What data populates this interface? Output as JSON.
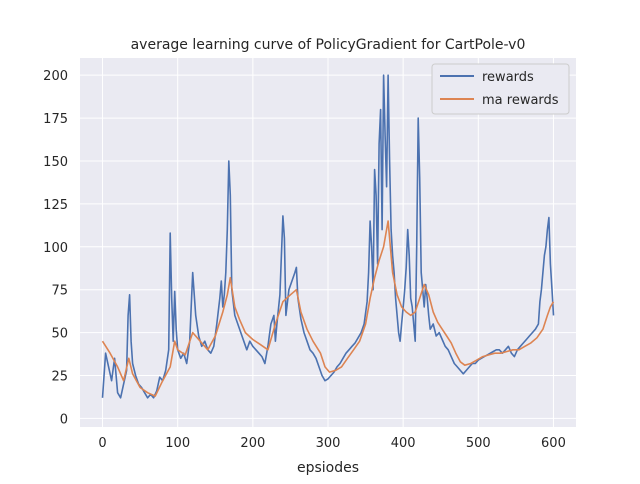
{
  "chart_data": {
    "type": "line",
    "title": "average learning curve of PolicyGradient for CartPole-v0",
    "xlabel": "epsiodes",
    "ylabel": "",
    "xlim": [
      -30,
      630
    ],
    "ylim": [
      -5,
      210
    ],
    "xticks": [
      0,
      100,
      200,
      300,
      400,
      500,
      600
    ],
    "yticks": [
      0,
      25,
      50,
      75,
      100,
      125,
      150,
      175,
      200
    ],
    "grid": true,
    "legend_position": "upper right",
    "series": [
      {
        "name": "rewards",
        "color": "#4c72b0",
        "points": [
          [
            0,
            12
          ],
          [
            4,
            38
          ],
          [
            8,
            30
          ],
          [
            12,
            22
          ],
          [
            16,
            35
          ],
          [
            20,
            15
          ],
          [
            24,
            12
          ],
          [
            28,
            20
          ],
          [
            32,
            28
          ],
          [
            34,
            60
          ],
          [
            36,
            72
          ],
          [
            38,
            45
          ],
          [
            40,
            32
          ],
          [
            44,
            25
          ],
          [
            48,
            20
          ],
          [
            52,
            18
          ],
          [
            56,
            15
          ],
          [
            60,
            12
          ],
          [
            64,
            14
          ],
          [
            68,
            12
          ],
          [
            72,
            16
          ],
          [
            76,
            24
          ],
          [
            80,
            22
          ],
          [
            84,
            28
          ],
          [
            88,
            40
          ],
          [
            90,
            108
          ],
          [
            92,
            70
          ],
          [
            94,
            45
          ],
          [
            96,
            74
          ],
          [
            98,
            52
          ],
          [
            100,
            40
          ],
          [
            104,
            35
          ],
          [
            108,
            38
          ],
          [
            112,
            32
          ],
          [
            116,
            45
          ],
          [
            120,
            85
          ],
          [
            124,
            60
          ],
          [
            128,
            48
          ],
          [
            132,
            42
          ],
          [
            136,
            45
          ],
          [
            140,
            40
          ],
          [
            144,
            38
          ],
          [
            148,
            42
          ],
          [
            152,
            55
          ],
          [
            156,
            70
          ],
          [
            158,
            80
          ],
          [
            160,
            65
          ],
          [
            162,
            72
          ],
          [
            164,
            85
          ],
          [
            166,
            110
          ],
          [
            168,
            150
          ],
          [
            170,
            130
          ],
          [
            172,
            75
          ],
          [
            176,
            60
          ],
          [
            180,
            55
          ],
          [
            184,
            50
          ],
          [
            188,
            45
          ],
          [
            192,
            40
          ],
          [
            196,
            45
          ],
          [
            200,
            42
          ],
          [
            204,
            40
          ],
          [
            208,
            38
          ],
          [
            212,
            36
          ],
          [
            216,
            32
          ],
          [
            220,
            42
          ],
          [
            224,
            55
          ],
          [
            228,
            60
          ],
          [
            230,
            45
          ],
          [
            232,
            55
          ],
          [
            236,
            72
          ],
          [
            238,
            95
          ],
          [
            240,
            118
          ],
          [
            242,
            105
          ],
          [
            244,
            60
          ],
          [
            248,
            75
          ],
          [
            252,
            80
          ],
          [
            256,
            85
          ],
          [
            258,
            88
          ],
          [
            260,
            70
          ],
          [
            264,
            58
          ],
          [
            268,
            50
          ],
          [
            272,
            45
          ],
          [
            276,
            40
          ],
          [
            280,
            38
          ],
          [
            284,
            35
          ],
          [
            288,
            30
          ],
          [
            292,
            25
          ],
          [
            296,
            22
          ],
          [
            300,
            23
          ],
          [
            304,
            25
          ],
          [
            308,
            27
          ],
          [
            312,
            30
          ],
          [
            316,
            32
          ],
          [
            320,
            35
          ],
          [
            324,
            38
          ],
          [
            328,
            40
          ],
          [
            332,
            42
          ],
          [
            336,
            44
          ],
          [
            340,
            47
          ],
          [
            344,
            50
          ],
          [
            348,
            55
          ],
          [
            352,
            68
          ],
          [
            354,
            85
          ],
          [
            356,
            115
          ],
          [
            358,
            100
          ],
          [
            360,
            75
          ],
          [
            362,
            145
          ],
          [
            364,
            130
          ],
          [
            366,
            90
          ],
          [
            368,
            160
          ],
          [
            370,
            180
          ],
          [
            372,
            110
          ],
          [
            374,
            200
          ],
          [
            376,
            165
          ],
          [
            378,
            135
          ],
          [
            380,
            200
          ],
          [
            382,
            150
          ],
          [
            384,
            110
          ],
          [
            386,
            95
          ],
          [
            388,
            85
          ],
          [
            390,
            70
          ],
          [
            392,
            60
          ],
          [
            394,
            50
          ],
          [
            396,
            45
          ],
          [
            398,
            55
          ],
          [
            400,
            65
          ],
          [
            402,
            75
          ],
          [
            404,
            88
          ],
          [
            406,
            110
          ],
          [
            408,
            95
          ],
          [
            410,
            70
          ],
          [
            412,
            65
          ],
          [
            414,
            55
          ],
          [
            416,
            45
          ],
          [
            418,
            100
          ],
          [
            420,
            175
          ],
          [
            422,
            140
          ],
          [
            424,
            85
          ],
          [
            426,
            75
          ],
          [
            428,
            65
          ],
          [
            430,
            78
          ],
          [
            432,
            70
          ],
          [
            434,
            60
          ],
          [
            436,
            52
          ],
          [
            440,
            55
          ],
          [
            444,
            48
          ],
          [
            448,
            50
          ],
          [
            452,
            46
          ],
          [
            456,
            42
          ],
          [
            460,
            40
          ],
          [
            464,
            36
          ],
          [
            468,
            32
          ],
          [
            472,
            30
          ],
          [
            476,
            28
          ],
          [
            480,
            26
          ],
          [
            484,
            28
          ],
          [
            488,
            30
          ],
          [
            492,
            32
          ],
          [
            496,
            32
          ],
          [
            500,
            34
          ],
          [
            504,
            35
          ],
          [
            508,
            36
          ],
          [
            512,
            37
          ],
          [
            516,
            38
          ],
          [
            520,
            39
          ],
          [
            524,
            40
          ],
          [
            528,
            40
          ],
          [
            532,
            38
          ],
          [
            536,
            40
          ],
          [
            540,
            42
          ],
          [
            544,
            38
          ],
          [
            548,
            36
          ],
          [
            552,
            40
          ],
          [
            556,
            42
          ],
          [
            560,
            44
          ],
          [
            564,
            46
          ],
          [
            568,
            48
          ],
          [
            572,
            50
          ],
          [
            576,
            52
          ],
          [
            580,
            55
          ],
          [
            582,
            68
          ],
          [
            584,
            75
          ],
          [
            586,
            85
          ],
          [
            588,
            95
          ],
          [
            590,
            100
          ],
          [
            592,
            110
          ],
          [
            594,
            117
          ],
          [
            596,
            90
          ],
          [
            598,
            75
          ],
          [
            600,
            60
          ]
        ]
      },
      {
        "name": "ma rewards",
        "color": "#dd8452",
        "points": [
          [
            0,
            45
          ],
          [
            10,
            38
          ],
          [
            20,
            30
          ],
          [
            28,
            22
          ],
          [
            35,
            35
          ],
          [
            40,
            26
          ],
          [
            50,
            18
          ],
          [
            60,
            15
          ],
          [
            70,
            13
          ],
          [
            80,
            22
          ],
          [
            90,
            30
          ],
          [
            96,
            45
          ],
          [
            100,
            40
          ],
          [
            110,
            37
          ],
          [
            120,
            50
          ],
          [
            130,
            45
          ],
          [
            140,
            40
          ],
          [
            150,
            48
          ],
          [
            160,
            62
          ],
          [
            166,
            72
          ],
          [
            170,
            82
          ],
          [
            176,
            65
          ],
          [
            182,
            58
          ],
          [
            190,
            50
          ],
          [
            200,
            46
          ],
          [
            210,
            43
          ],
          [
            220,
            40
          ],
          [
            230,
            55
          ],
          [
            240,
            68
          ],
          [
            250,
            72
          ],
          [
            258,
            75
          ],
          [
            264,
            62
          ],
          [
            272,
            52
          ],
          [
            280,
            45
          ],
          [
            290,
            38
          ],
          [
            296,
            30
          ],
          [
            302,
            27
          ],
          [
            310,
            28
          ],
          [
            318,
            30
          ],
          [
            326,
            35
          ],
          [
            334,
            40
          ],
          [
            342,
            45
          ],
          [
            350,
            55
          ],
          [
            356,
            70
          ],
          [
            362,
            82
          ],
          [
            368,
            92
          ],
          [
            374,
            100
          ],
          [
            380,
            115
          ],
          [
            386,
            85
          ],
          [
            392,
            72
          ],
          [
            398,
            65
          ],
          [
            404,
            62
          ],
          [
            410,
            60
          ],
          [
            416,
            62
          ],
          [
            422,
            70
          ],
          [
            428,
            78
          ],
          [
            434,
            72
          ],
          [
            440,
            62
          ],
          [
            446,
            56
          ],
          [
            452,
            52
          ],
          [
            458,
            48
          ],
          [
            464,
            44
          ],
          [
            470,
            38
          ],
          [
            476,
            33
          ],
          [
            482,
            31
          ],
          [
            490,
            32
          ],
          [
            498,
            34
          ],
          [
            506,
            36
          ],
          [
            514,
            37
          ],
          [
            522,
            38
          ],
          [
            530,
            38
          ],
          [
            538,
            39
          ],
          [
            546,
            40
          ],
          [
            554,
            40
          ],
          [
            562,
            42
          ],
          [
            570,
            44
          ],
          [
            578,
            47
          ],
          [
            586,
            52
          ],
          [
            592,
            60
          ],
          [
            596,
            65
          ],
          [
            600,
            68
          ]
        ]
      }
    ]
  }
}
